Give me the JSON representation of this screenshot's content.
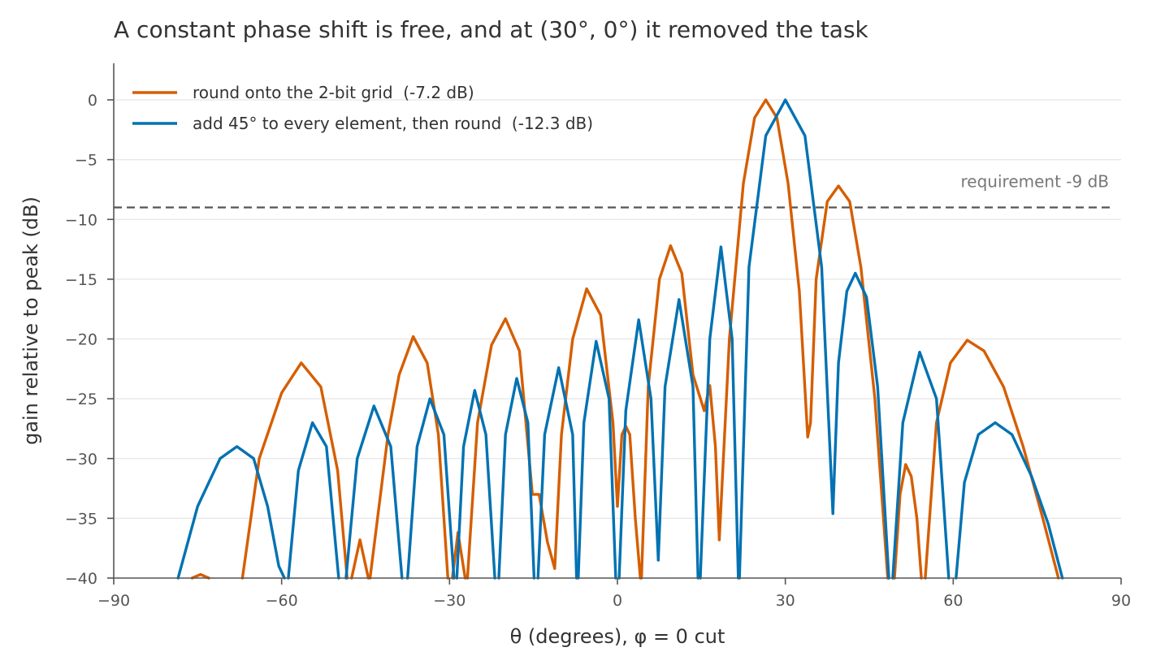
{
  "chart_data": {
    "type": "line",
    "title": "A constant phase shift is free, and at (30°, 0°) it removed the task",
    "xlabel": "θ (degrees), φ = 0 cut",
    "ylabel": "gain relative to peak (dB)",
    "xlim": [
      -90,
      90
    ],
    "ylim": [
      -40,
      3
    ],
    "xticks": [
      -90,
      -60,
      -30,
      0,
      30,
      60,
      90
    ],
    "xtick_labels": [
      "−90",
      "−60",
      "−30",
      "0",
      "30",
      "60",
      "90"
    ],
    "yticks": [
      0,
      -5,
      -10,
      -15,
      -20,
      -25,
      -30,
      -35,
      -40
    ],
    "ytick_labels": [
      "0",
      "−5",
      "−10",
      "−15",
      "−20",
      "−25",
      "−30",
      "−35",
      "−40"
    ],
    "grid": "horizontal",
    "legend_position": "top-left",
    "reference_line": {
      "y": -9,
      "label": "requirement -9 dB",
      "style": "dashed",
      "color": "#555555"
    },
    "series": [
      {
        "name": "round onto the 2-bit grid  (-7.2 dB)",
        "color": "#D55E00",
        "lobes": [
          {
            "x": [
              -76,
              -74.5,
              -73
            ],
            "y": [
              -40,
              -39.7,
              -40
            ]
          },
          {
            "x": [
              -67,
              -64,
              -60,
              -56.5,
              -53,
              -50,
              -48.3
            ],
            "y": [
              -40,
              -30,
              -24.5,
              -22,
              -24,
              -31,
              -40
            ]
          },
          {
            "x": [
              -47.5,
              -46,
              -44.5
            ],
            "y": [
              -40,
              -36.8,
              -40
            ]
          },
          {
            "x": [
              -44.2,
              -41,
              -39,
              -36.5,
              -34,
              -32,
              -30.3
            ],
            "y": [
              -40,
              -28,
              -23,
              -19.8,
              -22,
              -28,
              -40
            ]
          },
          {
            "x": [
              -29.5,
              -28.5,
              -27.2
            ],
            "y": [
              -40,
              -36.2,
              -40
            ]
          },
          {
            "x": [
              -26.8,
              -25,
              -22.5,
              -20,
              -17.5,
              -15.2
            ],
            "y": [
              -40,
              -27,
              -20.5,
              -18.3,
              -21,
              -33
            ]
          },
          {
            "x": [
              -15.2,
              -14,
              -12.5,
              -11.2
            ],
            "y": [
              -33,
              -33,
              -37,
              -39.2
            ]
          },
          {
            "x": [
              -11.2,
              -10,
              -8,
              -5.5,
              -3,
              -0.8,
              0
            ],
            "y": [
              -39.2,
              -28,
              -20,
              -15.8,
              -18,
              -27,
              -34
            ]
          },
          {
            "x": [
              0,
              0.8,
              1.5,
              2.2
            ],
            "y": [
              -34,
              -28,
              -27.3,
              -28
            ]
          },
          {
            "x": [
              2.2,
              3.2,
              4.1
            ],
            "y": [
              -28,
              -35,
              -40
            ]
          },
          {
            "x": [
              4.3,
              5.5,
              7.5,
              9.5,
              11.5,
              13.5,
              15.5
            ],
            "y": [
              -40,
              -24,
              -15,
              -12.2,
              -14.5,
              -23,
              -26
            ]
          },
          {
            "x": [
              15.5,
              16.5,
              17.5,
              18.2
            ],
            "y": [
              -26,
              -23.9,
              -29,
              -36.8
            ]
          },
          {
            "x": [
              18.2,
              20,
              22.5,
              24.5,
              26.5,
              28.5,
              30.5,
              32.5,
              34
            ],
            "y": [
              -36.8,
              -20,
              -7,
              -1.5,
              0,
              -1.5,
              -7,
              -16,
              -28.2
            ]
          },
          {
            "x": [
              34,
              34.5,
              35.5,
              37.5,
              39.5,
              41.5,
              43.5,
              46,
              48.3
            ],
            "y": [
              -28.2,
              -27,
              -15,
              -8.5,
              -7.2,
              -8.5,
              -14,
              -25,
              -40
            ]
          },
          {
            "x": [
              49.5,
              50.5,
              51.5,
              52.5,
              53.5,
              54.3
            ],
            "y": [
              -40,
              -33,
              -30.5,
              -31.5,
              -35,
              -40
            ]
          },
          {
            "x": [
              55,
              57,
              59.5,
              62.5,
              65.5,
              69,
              72.5,
              76,
              78.8
            ],
            "y": [
              -40,
              -27,
              -22,
              -20.1,
              -21,
              -24,
              -29,
              -35,
              -40
            ]
          }
        ]
      },
      {
        "name": "add 45° to every element, then round  (-12.3 dB)",
        "color": "#0072B2",
        "lobes": [
          {
            "x": [
              -78.5,
              -75,
              -71,
              -68,
              -65,
              -62.5,
              -60.5,
              -59.5
            ],
            "y": [
              -40,
              -34,
              -30,
              -29,
              -30,
              -34,
              -39,
              -40
            ]
          },
          {
            "x": [
              -58.8,
              -57,
              -54.5,
              -52,
              -49.8
            ],
            "y": [
              -40,
              -31,
              -27,
              -29,
              -40
            ]
          },
          {
            "x": [
              -48.5,
              -46.5,
              -43.5,
              -40.5,
              -38.5
            ],
            "y": [
              -40,
              -30,
              -25.6,
              -29,
              -40
            ]
          },
          {
            "x": [
              -37.5,
              -35.8,
              -33.5,
              -31,
              -29.2
            ],
            "y": [
              -40,
              -29,
              -25,
              -28,
              -40
            ]
          },
          {
            "x": [
              -28.7,
              -27.5,
              -25.5,
              -23.5,
              -21.9
            ],
            "y": [
              -40,
              -29,
              -24.3,
              -28,
              -40
            ]
          },
          {
            "x": [
              -21.2,
              -20,
              -18,
              -16,
              -14.9
            ],
            "y": [
              -40,
              -28,
              -23.3,
              -27,
              -40
            ]
          },
          {
            "x": [
              -14.2,
              -13,
              -10.5,
              -8,
              -7.3
            ],
            "y": [
              -40,
              -28,
              -22.4,
              -28,
              -40
            ]
          },
          {
            "x": [
              -7,
              -6,
              -3.8,
              -1.5,
              -0.3
            ],
            "y": [
              -40,
              -27,
              -20.2,
              -25,
              -40
            ]
          },
          {
            "x": [
              0.3,
              1.5,
              3.8,
              6,
              7.3
            ],
            "y": [
              -40,
              -26,
              -18.4,
              -25,
              -38.5
            ]
          },
          {
            "x": [
              7.3,
              8.5,
              11,
              13.5,
              14.4
            ],
            "y": [
              -38.5,
              -24,
              -16.7,
              -24,
              -40
            ]
          },
          {
            "x": [
              14.8,
              16.5,
              18.5,
              20.5,
              21.6
            ],
            "y": [
              -40,
              -20,
              -12.3,
              -20,
              -40
            ]
          },
          {
            "x": [
              21.8,
              23.5,
              26.5,
              30,
              33.5,
              36.5,
              38.5
            ],
            "y": [
              -40,
              -14,
              -3,
              0,
              -3,
              -14,
              -34.6
            ]
          },
          {
            "x": [
              38.5,
              39.5,
              41,
              42.5,
              44.5,
              46.5,
              48.5
            ],
            "y": [
              -34.6,
              -22,
              -16,
              -14.5,
              -16.5,
              -24,
              -40
            ]
          },
          {
            "x": [
              49.2,
              51,
              54,
              57,
              59.2
            ],
            "y": [
              -40,
              -27,
              -21.1,
              -25,
              -40
            ]
          },
          {
            "x": [
              60.5,
              62,
              64.5,
              67.5,
              70.5,
              74,
              77,
              79.5
            ],
            "y": [
              -40,
              -32,
              -28,
              -27,
              -28,
              -31.5,
              -35.5,
              -40
            ]
          }
        ]
      }
    ]
  }
}
